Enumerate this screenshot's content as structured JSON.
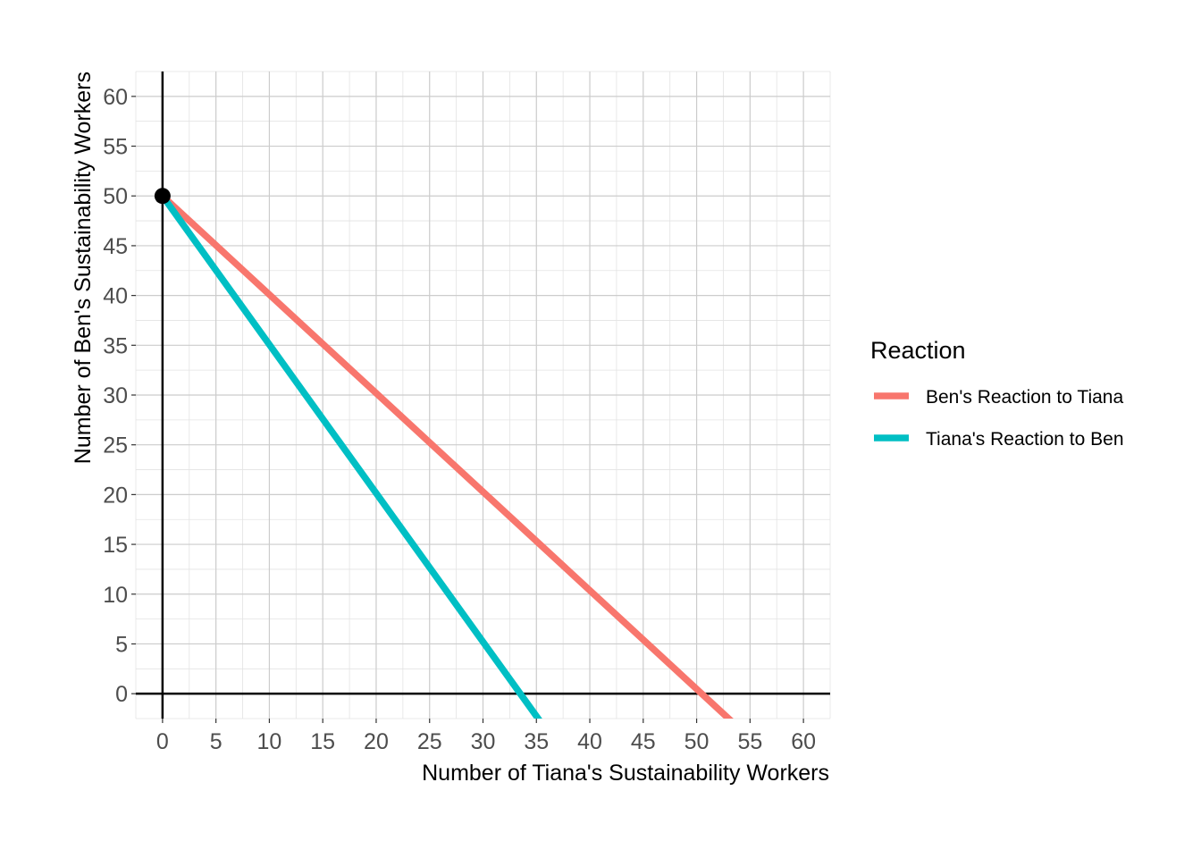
{
  "chart_data": {
    "type": "line",
    "title": "",
    "xlabel": "Number of Tiana's Sustainability Workers",
    "ylabel": "Number of Ben's Sustainability Workers",
    "xlim": [
      -2.5,
      62.5
    ],
    "ylim": [
      -2.5,
      62.5
    ],
    "x_ticks": [
      0,
      5,
      10,
      15,
      20,
      25,
      30,
      35,
      40,
      45,
      50,
      55,
      60
    ],
    "y_ticks": [
      0,
      5,
      10,
      15,
      20,
      25,
      30,
      35,
      40,
      45,
      50,
      55,
      60
    ],
    "grid": true,
    "minor_grid_step": 2.5,
    "axis_lines_at_zero": true,
    "series": [
      {
        "name": "Ben's Reaction to Tiana",
        "color": "#F8766D",
        "points": [
          [
            0,
            50
          ],
          [
            53.5,
            -3
          ]
        ]
      },
      {
        "name": "Tiana's Reaction to Ben",
        "color": "#00BFC4",
        "points": [
          [
            0,
            50
          ],
          [
            35.5,
            -3
          ]
        ]
      }
    ],
    "markers": [
      {
        "x": 0,
        "y": 50,
        "color": "#000000"
      }
    ],
    "legend": {
      "title": "Reaction",
      "placement": "right"
    }
  }
}
